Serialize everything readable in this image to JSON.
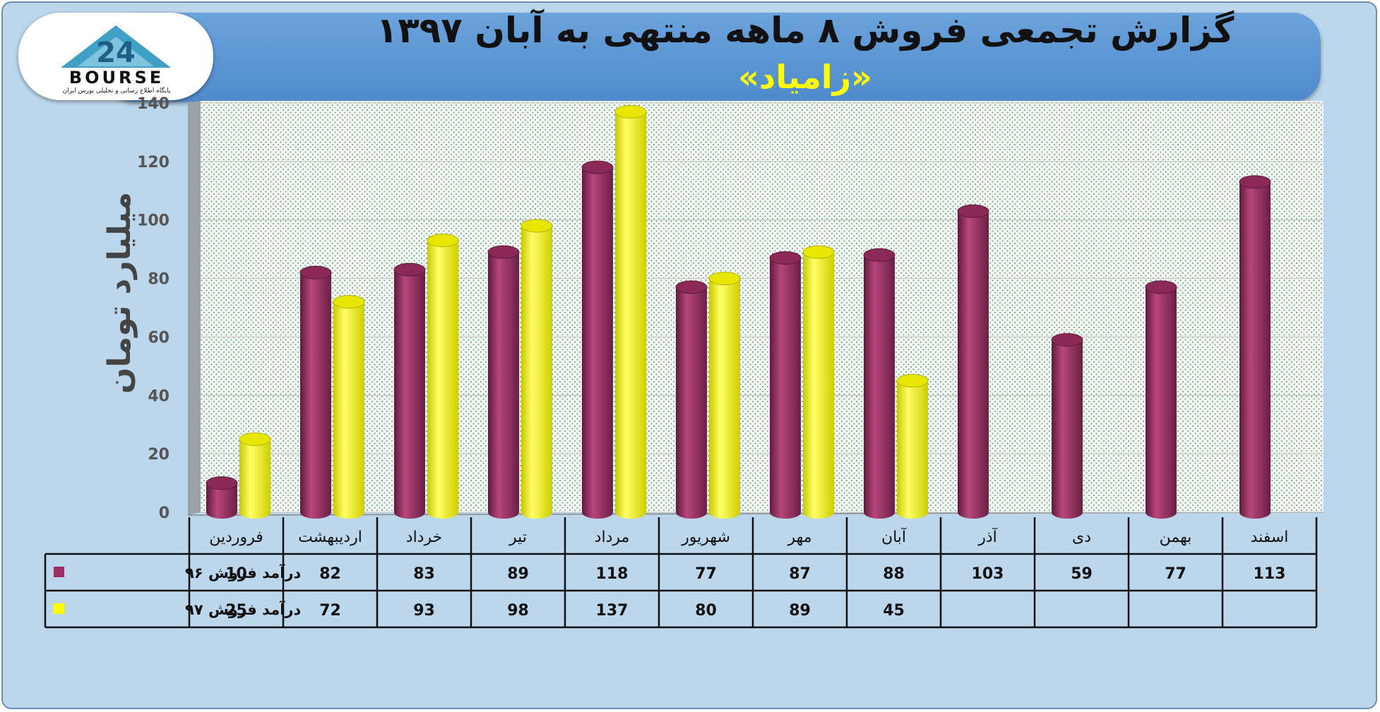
{
  "header": {
    "title": "گزارش تجمعی فروش ۸ ماهه منتهی به آبان ۱۳۹۷",
    "subtitle": "«زامیاد»"
  },
  "logo": {
    "number": "24",
    "word": "BOURSE",
    "tagline": "پایگاه اطلاع رسانی و تحلیلی بورس ایران"
  },
  "chart_data": {
    "type": "bar",
    "ylabel": "میلیارد تومان",
    "ylim": [
      0,
      140
    ],
    "yticks": [
      0,
      20,
      40,
      60,
      80,
      100,
      120,
      140
    ],
    "categories": [
      "فروردین",
      "اردیبهشت",
      "خرداد",
      "تیر",
      "مرداد",
      "شهریور",
      "مهر",
      "آبان",
      "آذر",
      "دی",
      "بهمن",
      "اسفند"
    ],
    "series": [
      {
        "name": "درآمد فروش ۹۶",
        "color": "#9c2f62",
        "values": [
          10,
          82,
          83,
          89,
          118,
          77,
          87,
          88,
          103,
          59,
          77,
          113
        ]
      },
      {
        "name": "درآمد فروش ۹۷",
        "color": "#ffff00",
        "values": [
          25,
          72,
          93,
          98,
          137,
          80,
          89,
          45,
          null,
          null,
          null,
          null
        ]
      }
    ],
    "legend": "data-table-below"
  }
}
